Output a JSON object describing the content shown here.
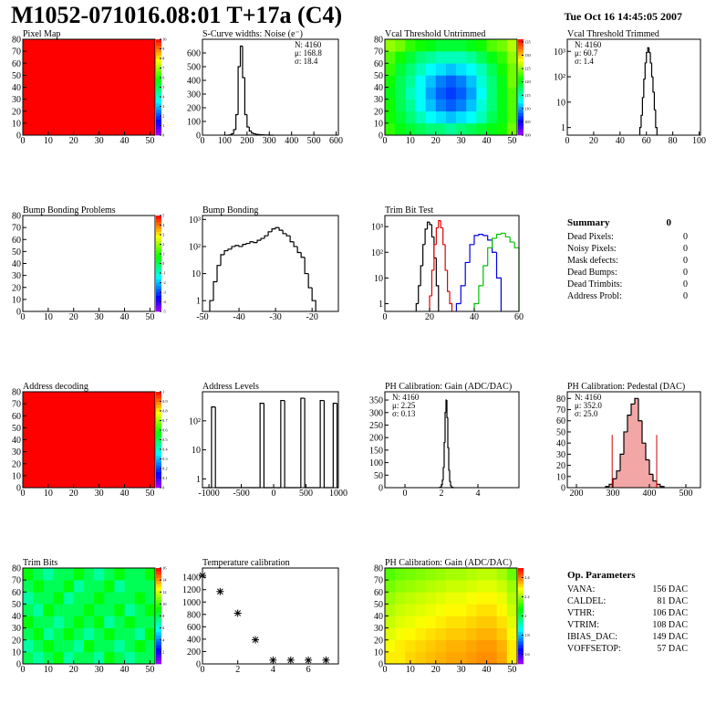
{
  "header": {
    "title": "M1052-071016.08:01 T+17a (C4)",
    "date": "Tue Oct 16 14:45:05 2007"
  },
  "chart_data": [
    {
      "type": "heatmap",
      "title": "Pixel Map",
      "xlim": [
        0,
        52
      ],
      "ylim": [
        0,
        80
      ],
      "xticks": [
        0,
        10,
        20,
        30,
        40,
        50
      ],
      "yticks": [
        0,
        10,
        20,
        30,
        40,
        50,
        60,
        70,
        80
      ],
      "zlim": [
        0,
        10
      ],
      "zticks": [
        0,
        1,
        2,
        3,
        4,
        5,
        6,
        7,
        8,
        9,
        10
      ],
      "z": [
        [
          10
        ]
      ]
    },
    {
      "type": "histogram",
      "title": "S-Curve widths: Noise (e⁻)",
      "xlim": [
        0,
        610
      ],
      "ylim": [
        0,
        700
      ],
      "xticks": [
        0,
        100,
        200,
        300,
        400,
        500,
        600
      ],
      "yticks": [
        0,
        100,
        200,
        300,
        400,
        500,
        600
      ],
      "color": "#000000",
      "bins": [
        100,
        110,
        120,
        130,
        140,
        150,
        160,
        170,
        180,
        190,
        200,
        210,
        220,
        230,
        240,
        250,
        260,
        270,
        280,
        290,
        300,
        310,
        320
      ],
      "counts": [
        0,
        0,
        2,
        10,
        40,
        150,
        500,
        650,
        420,
        150,
        60,
        30,
        15,
        10,
        6,
        4,
        3,
        2,
        1,
        1,
        0,
        0
      ],
      "stats_corner": "right",
      "stats": [
        {
          "text": "N: 4160"
        },
        {
          "text": "μ: 168.8"
        },
        {
          "text": "σ: 18.4"
        }
      ]
    },
    {
      "type": "heatmap",
      "title": "Vcal Threshold Untrimmed",
      "xlim": [
        0,
        52
      ],
      "ylim": [
        0,
        80
      ],
      "xticks": [
        0,
        10,
        20,
        30,
        40,
        50
      ],
      "yticks": [
        0,
        10,
        20,
        30,
        40,
        50,
        60,
        70,
        80
      ],
      "zlim": [
        100,
        136
      ],
      "zticks": [
        100,
        105,
        110,
        115,
        120,
        125,
        130,
        135
      ],
      "z": [
        [
          122,
          120,
          119,
          118,
          117,
          117,
          116,
          117,
          118,
          119,
          120,
          121,
          124
        ],
        [
          121,
          119,
          117,
          115,
          113,
          112,
          111,
          112,
          113,
          115,
          118,
          120,
          123
        ],
        [
          121,
          118,
          116,
          113,
          111,
          109,
          108,
          109,
          111,
          114,
          117,
          120,
          123
        ],
        [
          120,
          118,
          115,
          113,
          110,
          108,
          107,
          108,
          110,
          113,
          117,
          120,
          123
        ],
        [
          121,
          118,
          116,
          113,
          111,
          109,
          108,
          109,
          111,
          114,
          117,
          120,
          124
        ],
        [
          122,
          119,
          117,
          115,
          113,
          112,
          111,
          112,
          113,
          115,
          118,
          121,
          124
        ],
        [
          123,
          121,
          119,
          117,
          116,
          115,
          115,
          115,
          116,
          118,
          120,
          122,
          125
        ],
        [
          125,
          124,
          122,
          121,
          120,
          119,
          119,
          119,
          120,
          121,
          123,
          124,
          126
        ]
      ]
    },
    {
      "type": "histogram",
      "title": "Vcal Threshold Trimmed",
      "log_y": true,
      "xlim": [
        0,
        101
      ],
      "ylim": [
        0.5,
        3000
      ],
      "xticks": [
        0,
        20,
        40,
        60,
        80,
        100
      ],
      "yticks": [
        1,
        10,
        {
          "value": 100,
          "label": "10²"
        },
        {
          "value": 1000,
          "label": "10³"
        }
      ],
      "color": "#000000",
      "bins": [
        55,
        56,
        57,
        58,
        59,
        60,
        61,
        62,
        63,
        64,
        65,
        66,
        67,
        68
      ],
      "counts": [
        1,
        3,
        15,
        80,
        350,
        900,
        1400,
        900,
        350,
        100,
        25,
        5,
        1
      ],
      "stats_corner": "left",
      "stats": [
        {
          "text": "N: 4160"
        },
        {
          "text": "μ: 60.7"
        },
        {
          "text": "σ:  1.4"
        }
      ]
    },
    {
      "type": "heatmap",
      "title": "Bump Bonding Problems",
      "xlim": [
        0,
        52
      ],
      "ylim": [
        0,
        80
      ],
      "xticks": [
        0,
        10,
        20,
        30,
        40,
        50
      ],
      "yticks": [
        0,
        10,
        20,
        30,
        40,
        50,
        60,
        70,
        80
      ],
      "zlim": [
        -5,
        5
      ],
      "zticks": [
        -5,
        -4,
        -3,
        -2,
        -1,
        0,
        1,
        2,
        3,
        4,
        5
      ]
    },
    {
      "type": "histogram",
      "title": "Bump Bonding",
      "log_y": true,
      "xlim": [
        -50,
        -12.8
      ],
      "ylim": [
        0.4,
        1400
      ],
      "xticks": [
        -50,
        -40,
        -30,
        -20
      ],
      "yticks": [
        1,
        10,
        {
          "value": 100,
          "label": "10²"
        },
        {
          "value": 1000,
          "label": "10³"
        }
      ],
      "color": "#000000",
      "bins": [
        -48,
        -47,
        -46,
        -45,
        -44,
        -43,
        -42,
        -41,
        -40,
        -39,
        -38,
        -37,
        -36,
        -35,
        -34,
        -33,
        -32,
        -31,
        -30,
        -29,
        -28,
        -27,
        -26,
        -25,
        -24,
        -23,
        -22,
        -21,
        -20,
        -19
      ],
      "counts": [
        1,
        5,
        20,
        50,
        70,
        80,
        100,
        110,
        100,
        120,
        130,
        150,
        140,
        170,
        200,
        250,
        350,
        450,
        500,
        400,
        300,
        250,
        150,
        100,
        60,
        40,
        10,
        3,
        1
      ]
    },
    {
      "type": "histogram",
      "title": "Trim Bit Test",
      "log_y": true,
      "xlim": [
        0,
        60
      ],
      "ylim": [
        0.5,
        2700
      ],
      "xticks": [
        0,
        20,
        40,
        60
      ],
      "yticks": [
        1,
        10,
        {
          "value": 100,
          "label": "10²"
        },
        {
          "value": 1000,
          "label": "10³"
        }
      ],
      "series": [
        {
          "color": "#000000",
          "bins": [
            14,
            15,
            16,
            17,
            18,
            19,
            20,
            21,
            22,
            23,
            24
          ],
          "counts": [
            1,
            5,
            30,
            200,
            800,
            1500,
            1200,
            400,
            60,
            5
          ]
        },
        {
          "color": "#e00000",
          "bins": [
            20,
            21,
            22,
            23,
            24,
            25,
            26,
            27,
            28,
            29,
            30
          ],
          "counts": [
            2,
            20,
            200,
            900,
            1700,
            900,
            200,
            20,
            3,
            1
          ]
        },
        {
          "color": "#0000e0",
          "bins": [
            32,
            34,
            36,
            38,
            40,
            42,
            44,
            46,
            48,
            50,
            52
          ],
          "counts": [
            1,
            5,
            40,
            200,
            450,
            500,
            450,
            300,
            100,
            10
          ]
        },
        {
          "color": "#00c000",
          "bins": [
            40,
            42,
            44,
            46,
            48,
            50,
            52,
            54,
            56,
            58,
            60
          ],
          "counts": [
            1,
            5,
            30,
            150,
            350,
            500,
            550,
            400,
            250,
            150
          ]
        }
      ]
    },
    {
      "type": "table",
      "title": "Summary",
      "title_value": 0,
      "rows": [
        [
          "Dead Pixels:",
          0
        ],
        [
          "Noisy Pixels:",
          0
        ],
        [
          "Mask defects:",
          0
        ],
        [
          "Dead Bumps:",
          0
        ],
        [
          "Dead Trimbits:",
          0
        ],
        [
          "Address Probl:",
          0
        ]
      ]
    },
    {
      "type": "heatmap",
      "title": "Address decoding",
      "xlim": [
        0,
        52
      ],
      "ylim": [
        0,
        80
      ],
      "xticks": [
        0,
        10,
        20,
        30,
        40,
        50
      ],
      "yticks": [
        0,
        10,
        20,
        30,
        40,
        50,
        60,
        70,
        80
      ],
      "zlim": [
        0,
        1
      ],
      "zticks": [
        0,
        0.1,
        0.2,
        0.3,
        0.4,
        0.5,
        0.6,
        0.7,
        0.8,
        0.9,
        1
      ],
      "z": [
        [
          1
        ]
      ]
    },
    {
      "type": "histogram",
      "title": "Address Levels",
      "log_y": true,
      "xlim": [
        -1100,
        1000
      ],
      "ylim": [
        0.5,
        1000
      ],
      "xticks": [
        -1000,
        -500,
        0,
        500,
        1000
      ],
      "yticks": [
        1,
        10,
        {
          "value": 100,
          "label": "10²"
        }
      ],
      "color": "#000000",
      "bins": [
        -1100,
        -960,
        -900,
        -210,
        -150,
        110,
        170,
        420,
        480,
        720,
        780,
        920,
        980,
        1000
      ],
      "counts": [
        0,
        300,
        0,
        400,
        0,
        500,
        0,
        600,
        0,
        500,
        0,
        400,
        0
      ]
    },
    {
      "type": "histogram",
      "title": "PH Calibration: Gain (ADC/DAC)",
      "xlim": [
        -1.1,
        6.25
      ],
      "ylim": [
        0,
        383
      ],
      "xticks": [
        0,
        2,
        4
      ],
      "yticks": [
        0,
        50,
        100,
        150,
        200,
        250,
        300,
        350
      ],
      "color": "#000000",
      "bins": [
        1.9,
        1.95,
        2.0,
        2.05,
        2.1,
        2.15,
        2.2,
        2.25,
        2.3,
        2.35,
        2.4,
        2.45,
        2.5,
        2.55,
        2.6,
        2.65,
        2.7
      ],
      "counts": [
        1,
        3,
        10,
        30,
        80,
        180,
        300,
        350,
        280,
        160,
        70,
        25,
        8,
        3,
        1,
        0
      ],
      "stats_corner": "left",
      "stats": [
        {
          "text": "N: 4160"
        },
        {
          "text": "μ: 2.25"
        },
        {
          "text": "σ: 0.13"
        }
      ]
    },
    {
      "type": "histogram",
      "title": "PH Calibration: Pedestal (DAC)",
      "xlim": [
        175,
        540
      ],
      "ylim": [
        0,
        86
      ],
      "xticks": [
        200,
        300,
        400,
        500
      ],
      "yticks": [
        0,
        10,
        20,
        30,
        40,
        50,
        60,
        70,
        80
      ],
      "color": "#000000",
      "fill": "#f2a6a6",
      "bins": [
        280,
        290,
        300,
        310,
        320,
        330,
        340,
        350,
        360,
        370,
        380,
        390,
        400,
        410,
        420,
        430,
        440
      ],
      "counts": [
        1,
        3,
        8,
        15,
        30,
        50,
        65,
        75,
        80,
        60,
        40,
        25,
        12,
        6,
        3,
        1
      ],
      "vlines": [
        298,
        420
      ],
      "vline_color": "#d00000",
      "stats_corner": "left",
      "stats": [
        {
          "text": "N: 4160"
        },
        {
          "text": "μ: 352.0",
          "color": "#d00000"
        },
        {
          "text": "σ: 25.0",
          "color": "#d00000"
        }
      ]
    },
    {
      "type": "heatmap",
      "title": "Trim Bits",
      "xlim": [
        0,
        52
      ],
      "ylim": [
        0,
        80
      ],
      "xticks": [
        0,
        10,
        20,
        30,
        40,
        50
      ],
      "yticks": [
        0,
        10,
        20,
        30,
        40,
        50,
        60,
        70,
        80
      ],
      "zlim": [
        0,
        16
      ],
      "zticks": [
        2,
        4,
        6,
        8,
        10,
        12,
        14,
        16
      ],
      "z": [
        [
          8,
          7,
          8,
          9,
          7,
          8,
          8,
          7,
          9,
          8,
          7,
          8,
          8
        ],
        [
          7,
          8,
          9,
          8,
          8,
          7,
          9,
          8,
          8,
          7,
          8,
          9,
          8
        ],
        [
          8,
          9,
          7,
          8,
          9,
          8,
          7,
          8,
          9,
          8,
          8,
          7,
          9
        ],
        [
          9,
          8,
          8,
          7,
          8,
          9,
          8,
          9,
          7,
          8,
          9,
          8,
          8
        ],
        [
          8,
          7,
          9,
          8,
          8,
          8,
          9,
          8,
          8,
          9,
          7,
          8,
          9
        ],
        [
          7,
          8,
          8,
          9,
          7,
          8,
          8,
          9,
          8,
          8,
          8,
          9,
          8
        ],
        [
          8,
          9,
          8,
          8,
          9,
          7,
          8,
          8,
          9,
          7,
          8,
          8,
          8
        ],
        [
          9,
          8,
          7,
          8,
          8,
          9,
          8,
          7,
          8,
          9,
          8,
          8,
          9
        ]
      ]
    },
    {
      "type": "scatter",
      "title": "Temperature calibration",
      "xlim": [
        0,
        7.7
      ],
      "ylim": [
        0,
        1550
      ],
      "xticks": [
        0,
        2,
        4,
        6
      ],
      "yticks": [
        0,
        200,
        400,
        600,
        800,
        1000,
        1200,
        1400
      ],
      "color": "#000000",
      "x": [
        0,
        1,
        2,
        3,
        4,
        5,
        6,
        7
      ],
      "values": [
        1430,
        1170,
        820,
        390,
        60,
        60,
        60,
        60
      ]
    },
    {
      "type": "heatmap",
      "title": "PH Calibration: Gain (ADC/DAC)",
      "xlim": [
        0,
        52
      ],
      "ylim": [
        0,
        80
      ],
      "xticks": [
        0,
        10,
        20,
        30,
        40,
        50
      ],
      "yticks": [
        0,
        10,
        20,
        30,
        40,
        50,
        60,
        70,
        80
      ],
      "zlim": [
        1.5,
        2.5
      ],
      "zticks": [
        1.6,
        1.8,
        2,
        2.2,
        2.4
      ],
      "z": [
        [
          2.3,
          2.3,
          2.32,
          2.33,
          2.34,
          2.35,
          2.36,
          2.36,
          2.37,
          2.38,
          2.38,
          2.36,
          2.3
        ],
        [
          2.28,
          2.3,
          2.31,
          2.32,
          2.33,
          2.34,
          2.35,
          2.35,
          2.36,
          2.37,
          2.37,
          2.35,
          2.3
        ],
        [
          2.26,
          2.28,
          2.29,
          2.3,
          2.31,
          2.32,
          2.33,
          2.33,
          2.34,
          2.35,
          2.35,
          2.33,
          2.28
        ],
        [
          2.24,
          2.26,
          2.27,
          2.28,
          2.29,
          2.3,
          2.31,
          2.31,
          2.32,
          2.33,
          2.33,
          2.31,
          2.26
        ],
        [
          2.22,
          2.24,
          2.25,
          2.26,
          2.27,
          2.28,
          2.29,
          2.29,
          2.3,
          2.31,
          2.31,
          2.29,
          2.24
        ],
        [
          2.2,
          2.22,
          2.23,
          2.24,
          2.25,
          2.26,
          2.27,
          2.27,
          2.28,
          2.29,
          2.29,
          2.27,
          2.22
        ],
        [
          2.17,
          2.19,
          2.2,
          2.21,
          2.22,
          2.23,
          2.24,
          2.24,
          2.25,
          2.26,
          2.26,
          2.24,
          2.2
        ],
        [
          2.14,
          2.16,
          2.17,
          2.18,
          2.19,
          2.2,
          2.21,
          2.21,
          2.22,
          2.23,
          2.23,
          2.21,
          2.16
        ]
      ]
    },
    {
      "type": "table",
      "title": "Op. Parameters",
      "rows": [
        [
          "VANA:",
          "156 DAC"
        ],
        [
          "CALDEL:",
          "81 DAC"
        ],
        [
          "VTHR:",
          "106 DAC"
        ],
        [
          "VTRIM:",
          "108 DAC"
        ],
        [
          "IBIAS_DAC:",
          "149 DAC"
        ],
        [
          "VOFFSETOP:",
          "57 DAC"
        ]
      ]
    }
  ]
}
